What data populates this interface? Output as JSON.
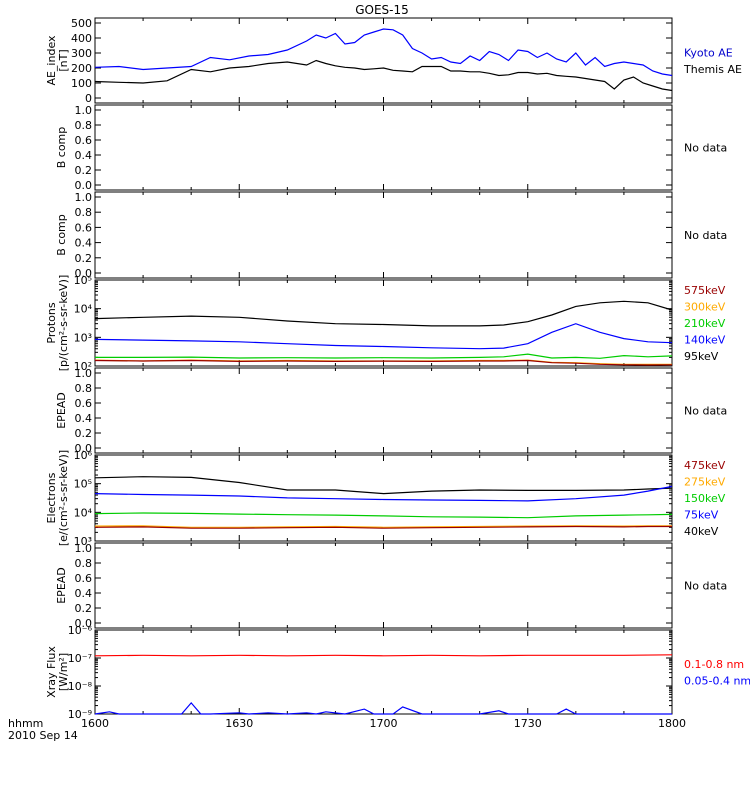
{
  "title": "GOES-15",
  "time_axis": {
    "label_line1": "hhmm",
    "label_line2": "2010 Sep 14",
    "ticks": [
      "1600",
      "1630",
      "1700",
      "1730",
      "1800"
    ],
    "range_min": [
      0,
      120
    ]
  },
  "colors": {
    "black": "#000000",
    "blue": "#0000ff",
    "green": "#00cc00",
    "orange": "#ffaa00",
    "dark_red": "#990000",
    "red": "#ff0000",
    "kyoto": "#0000cc"
  },
  "chart_data": [
    {
      "type": "line",
      "ylabel": [
        "AE_index",
        "[nT]"
      ],
      "ylim": [
        0,
        500
      ],
      "yticks": [
        "0",
        "100",
        "200",
        "300",
        "400",
        "500"
      ],
      "x": [
        0,
        5,
        10,
        15,
        20,
        24,
        28,
        32,
        36,
        40,
        44,
        46,
        48,
        50,
        52,
        54,
        56,
        58,
        60,
        62,
        64,
        66,
        68,
        70,
        72,
        74,
        76,
        78,
        80,
        82,
        84,
        86,
        88,
        90,
        92,
        94,
        96,
        98,
        100,
        102,
        104,
        106,
        108,
        110,
        112,
        114,
        116,
        118,
        120
      ],
      "series": [
        {
          "name": "Kyoto AE",
          "color": "blue",
          "values": [
            205,
            210,
            190,
            200,
            210,
            270,
            255,
            280,
            290,
            320,
            380,
            420,
            400,
            430,
            360,
            370,
            420,
            440,
            460,
            455,
            420,
            330,
            300,
            260,
            270,
            240,
            230,
            280,
            250,
            310,
            290,
            250,
            320,
            310,
            270,
            300,
            260,
            240,
            300,
            220,
            270,
            210,
            230,
            240,
            230,
            220,
            180,
            160,
            150
          ]
        },
        {
          "name": "Themis AE",
          "color": "black",
          "values": [
            110,
            105,
            100,
            115,
            190,
            175,
            200,
            210,
            230,
            240,
            220,
            250,
            230,
            215,
            205,
            200,
            190,
            195,
            200,
            185,
            180,
            175,
            210,
            210,
            210,
            180,
            180,
            175,
            175,
            165,
            150,
            155,
            170,
            170,
            160,
            165,
            150,
            145,
            140,
            130,
            120,
            110,
            60,
            120,
            140,
            100,
            80,
            60,
            50
          ]
        }
      ],
      "side_labels": [
        {
          "text": "Kyoto AE",
          "color": "kyoto"
        },
        {
          "text": "Themis AE",
          "color": "black"
        }
      ]
    },
    {
      "type": "line",
      "ylabel": [
        "B comp"
      ],
      "ylim": [
        0,
        1
      ],
      "yticks": [
        "0.0",
        "0.2",
        "0.4",
        "0.6",
        "0.8",
        "1.0"
      ],
      "series": [],
      "side_labels": [
        {
          "text": "No data",
          "color": "black"
        }
      ]
    },
    {
      "type": "line",
      "ylabel": [
        "B comp"
      ],
      "ylim": [
        0,
        1
      ],
      "yticks": [
        "0.0",
        "0.2",
        "0.4",
        "0.6",
        "0.8",
        "1.0"
      ],
      "series": [],
      "side_labels": [
        {
          "text": "No data",
          "color": "black"
        }
      ]
    },
    {
      "type": "line",
      "log": true,
      "ylabel": [
        "Protons",
        "[p/(cm²-s-sr-keV)]"
      ],
      "ylim_exp": [
        2,
        5
      ],
      "yticks": [
        "10²",
        "10³",
        "10⁴",
        "10⁵"
      ],
      "x": [
        0,
        10,
        20,
        30,
        40,
        50,
        60,
        70,
        80,
        85,
        90,
        95,
        100,
        105,
        110,
        115,
        120
      ],
      "series": [
        {
          "name": "95keV",
          "color": "black",
          "values": [
            4500,
            5000,
            5500,
            5000,
            3700,
            3000,
            2800,
            2500,
            2500,
            2700,
            3500,
            6000,
            12000,
            16000,
            18000,
            16000,
            9000
          ]
        },
        {
          "name": "140keV",
          "color": "blue",
          "values": [
            850,
            800,
            750,
            700,
            600,
            520,
            480,
            430,
            400,
            420,
            600,
            1500,
            3000,
            1500,
            900,
            700,
            650
          ]
        },
        {
          "name": "210keV",
          "color": "green",
          "values": [
            200,
            200,
            205,
            190,
            195,
            190,
            195,
            190,
            200,
            210,
            260,
            190,
            200,
            185,
            230,
            210,
            225
          ]
        },
        {
          "name": "300keV",
          "color": "orange",
          "values": [
            160,
            150,
            160,
            150,
            155,
            150,
            150,
            150,
            155,
            155,
            160,
            135,
            130,
            120,
            115,
            115,
            115
          ]
        },
        {
          "name": "575keV",
          "color": "dark_red",
          "values": [
            155,
            150,
            155,
            145,
            150,
            145,
            148,
            145,
            150,
            150,
            155,
            130,
            125,
            115,
            110,
            108,
            110
          ]
        }
      ],
      "side_labels": [
        {
          "text": "575keV",
          "color": "dark_red"
        },
        {
          "text": "300keV",
          "color": "orange"
        },
        {
          "text": "210keV",
          "color": "green"
        },
        {
          "text": "140keV",
          "color": "blue"
        },
        {
          "text": "95keV",
          "color": "black"
        }
      ]
    },
    {
      "type": "line",
      "ylabel": [
        "EPEAD"
      ],
      "ylim": [
        0,
        1
      ],
      "yticks": [
        "0.0",
        "0.2",
        "0.4",
        "0.6",
        "0.8",
        "1.0"
      ],
      "series": [],
      "side_labels": [
        {
          "text": "No data",
          "color": "black"
        }
      ]
    },
    {
      "type": "line",
      "log": true,
      "ylabel": [
        "Electrons",
        "[e/(cm²-s-sr-keV)]"
      ],
      "ylim_exp": [
        3,
        6
      ],
      "yticks": [
        "10³",
        "10⁴",
        "10⁵",
        "10⁶"
      ],
      "x": [
        0,
        10,
        20,
        30,
        40,
        50,
        60,
        70,
        80,
        90,
        100,
        110,
        115,
        120
      ],
      "series": [
        {
          "name": "40keV",
          "color": "black",
          "values": [
            160000,
            175000,
            165000,
            110000,
            60000,
            60000,
            45000,
            55000,
            60000,
            58000,
            58000,
            60000,
            65000,
            70000
          ]
        },
        {
          "name": "75keV",
          "color": "blue",
          "values": [
            45000,
            42000,
            40000,
            37000,
            32000,
            30000,
            28000,
            27000,
            26000,
            25000,
            30000,
            40000,
            55000,
            80000
          ]
        },
        {
          "name": "150keV",
          "color": "green",
          "values": [
            9000,
            9500,
            9200,
            8700,
            8300,
            8000,
            7500,
            7000,
            6800,
            6500,
            7500,
            8000,
            8200,
            8500
          ]
        },
        {
          "name": "275keV",
          "color": "orange",
          "values": [
            3300,
            3400,
            3000,
            3000,
            3100,
            3200,
            3000,
            3100,
            3200,
            3300,
            3400,
            3300,
            3400,
            3400
          ]
        },
        {
          "name": "475keV",
          "color": "dark_red",
          "values": [
            3000,
            3100,
            2800,
            2800,
            2900,
            3000,
            2800,
            2900,
            3000,
            3100,
            3200,
            3100,
            3200,
            3200
          ]
        }
      ],
      "side_labels": [
        {
          "text": "475keV",
          "color": "dark_red"
        },
        {
          "text": "275keV",
          "color": "orange"
        },
        {
          "text": "150keV",
          "color": "green"
        },
        {
          "text": "75keV",
          "color": "blue"
        },
        {
          "text": "40keV",
          "color": "black"
        }
      ]
    },
    {
      "type": "line",
      "ylabel": [
        "EPEAD"
      ],
      "ylim": [
        0,
        1
      ],
      "yticks": [
        "0.0",
        "0.2",
        "0.4",
        "0.6",
        "0.8",
        "1.0"
      ],
      "series": [],
      "side_labels": [
        {
          "text": "No data",
          "color": "black"
        }
      ]
    },
    {
      "type": "line",
      "log": true,
      "ylabel": [
        "Xray Flux",
        "[W/m²]"
      ],
      "ylim_exp": [
        -9,
        -6
      ],
      "yticks": [
        "10⁻⁹",
        "10⁻⁸",
        "10⁻⁷",
        "10⁻⁶"
      ],
      "tick_exps": [
        -9,
        -8,
        -7,
        -6
      ],
      "x": [
        0,
        10,
        20,
        30,
        40,
        50,
        60,
        70,
        80,
        90,
        100,
        110,
        120
      ],
      "series": [
        {
          "name": "0.1-0.8 nm",
          "color": "red",
          "values": [
            1.2e-07,
            1.25e-07,
            1.2e-07,
            1.25e-07,
            1.2e-07,
            1.25e-07,
            1.2e-07,
            1.25e-07,
            1.2e-07,
            1.25e-07,
            1.25e-07,
            1.25e-07,
            1.3e-07
          ]
        },
        {
          "name": "0.05-0.4 nm",
          "color": "blue",
          "x": [
            0,
            3,
            5,
            18,
            20,
            22,
            24,
            30,
            32,
            36,
            40,
            44,
            46,
            48,
            52,
            56,
            58,
            62,
            64,
            68,
            70,
            80,
            84,
            86,
            90,
            96,
            98,
            100,
            104,
            110,
            116,
            120
          ],
          "values": [
            1e-09,
            1.2e-09,
            1e-09,
            1e-09,
            2.5e-09,
            1e-09,
            1e-09,
            1.1e-09,
            1e-09,
            1.1e-09,
            1e-09,
            1.1e-09,
            1e-09,
            1.2e-09,
            1e-09,
            1.5e-09,
            1e-09,
            1e-09,
            1.8e-09,
            1e-09,
            1e-09,
            1e-09,
            1.3e-09,
            1e-09,
            1e-09,
            1e-09,
            1.5e-09,
            1e-09,
            1e-09,
            1e-09,
            1e-09,
            1e-09
          ]
        }
      ],
      "side_labels": [
        {
          "text": "0.1-0.8 nm",
          "color": "red"
        },
        {
          "text": "0.05-0.4 nm",
          "color": "blue"
        }
      ]
    }
  ]
}
